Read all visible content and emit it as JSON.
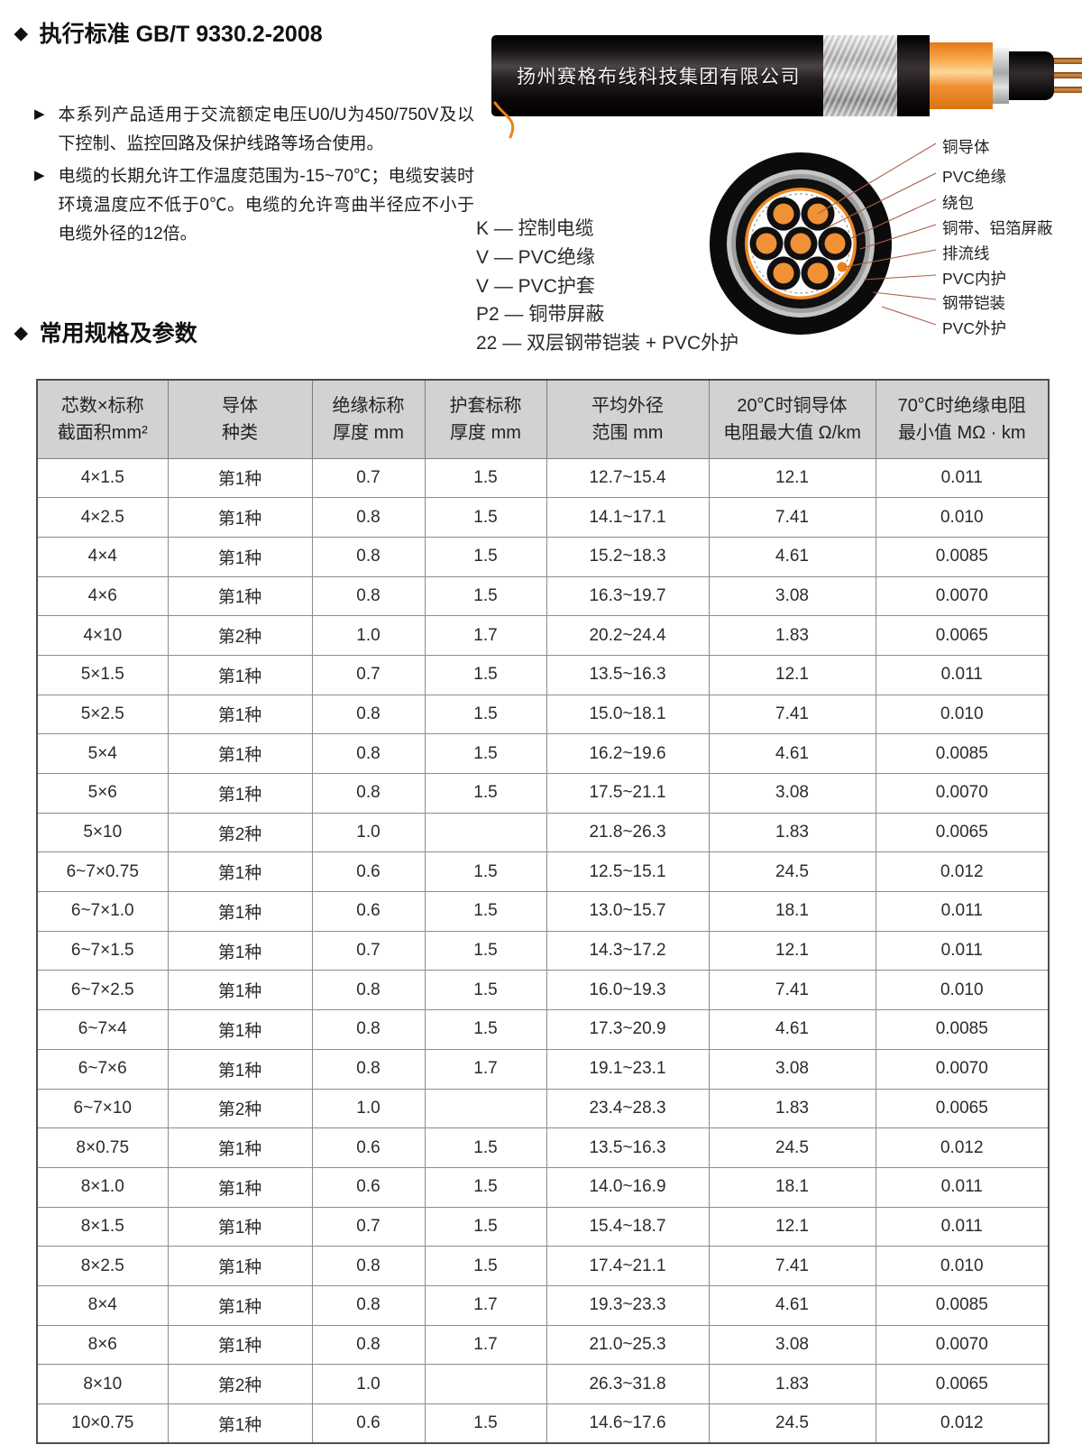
{
  "icons": {
    "diamond": "◆",
    "triangle": "▶"
  },
  "headings": {
    "standard": "执行标准 GB/T 9330.2-2008",
    "specs": "常用规格及参数"
  },
  "bullets": [
    "本系列产品适用于交流额定电压U0/U为450/750V及以下控制、监控回路及保护线路等场合使用。",
    "电缆的长期允许工作温度范围为-15~70℃；电缆安装时环境温度应不低于0℃。电缆的允许弯曲半径应不小于电缆外径的12倍。"
  ],
  "cable_photo": {
    "brand_text": "扬州赛格布线科技集团有限公司"
  },
  "code_legend": [
    "K — 控制电缆",
    "V — PVC绝缘",
    "V — PVC护套",
    "P2 — 铜带屏蔽",
    "22 — 双层钢带铠装 + PVC外护"
  ],
  "diagram_labels": [
    "铜导体",
    "PVC绝缘",
    "绕包",
    "铜带、铝箔屏蔽",
    "排流线",
    "PVC内护",
    "钢带铠装",
    "PVC外护"
  ],
  "colors": {
    "core_orange": "#f09136",
    "sheath_black": "#0b0b0b",
    "steel_gray": "#bdbdbd",
    "leader_line": "#a9604a",
    "table_header_bg": "#d2d2d2"
  },
  "table": {
    "headers": [
      [
        "芯数×标称",
        "截面积mm²"
      ],
      [
        "导体",
        "种类"
      ],
      [
        "绝缘标称",
        "厚度 mm"
      ],
      [
        "护套标称",
        "厚度 mm"
      ],
      [
        "平均外径",
        "范围 mm"
      ],
      [
        "20℃时铜导体",
        "电阻最大值 Ω/km"
      ],
      [
        "70℃时绝缘电阻",
        "最小值 MΩ · km"
      ]
    ],
    "rows": [
      [
        "4×1.5",
        "第1种",
        "0.7",
        "1.5",
        "12.7~15.4",
        "12.1",
        "0.011"
      ],
      [
        "4×2.5",
        "第1种",
        "0.8",
        "1.5",
        "14.1~17.1",
        "7.41",
        "0.010"
      ],
      [
        "4×4",
        "第1种",
        "0.8",
        "1.5",
        "15.2~18.3",
        "4.61",
        "0.0085"
      ],
      [
        "4×6",
        "第1种",
        "0.8",
        "1.5",
        "16.3~19.7",
        "3.08",
        "0.0070"
      ],
      [
        "4×10",
        "第2种",
        "1.0",
        "1.7",
        "20.2~24.4",
        "1.83",
        "0.0065"
      ],
      [
        "5×1.5",
        "第1种",
        "0.7",
        "1.5",
        "13.5~16.3",
        "12.1",
        "0.011"
      ],
      [
        "5×2.5",
        "第1种",
        "0.8",
        "1.5",
        "15.0~18.1",
        "7.41",
        "0.010"
      ],
      [
        "5×4",
        "第1种",
        "0.8",
        "1.5",
        "16.2~19.6",
        "4.61",
        "0.0085"
      ],
      [
        "5×6",
        "第1种",
        "0.8",
        "1.5",
        "17.5~21.1",
        "3.08",
        "0.0070"
      ],
      [
        "5×10",
        "第2种",
        "1.0",
        "",
        "21.8~26.3",
        "1.83",
        "0.0065"
      ],
      [
        "6~7×0.75",
        "第1种",
        "0.6",
        "1.5",
        "12.5~15.1",
        "24.5",
        "0.012"
      ],
      [
        "6~7×1.0",
        "第1种",
        "0.6",
        "1.5",
        "13.0~15.7",
        "18.1",
        "0.011"
      ],
      [
        "6~7×1.5",
        "第1种",
        "0.7",
        "1.5",
        "14.3~17.2",
        "12.1",
        "0.011"
      ],
      [
        "6~7×2.5",
        "第1种",
        "0.8",
        "1.5",
        "16.0~19.3",
        "7.41",
        "0.010"
      ],
      [
        "6~7×4",
        "第1种",
        "0.8",
        "1.5",
        "17.3~20.9",
        "4.61",
        "0.0085"
      ],
      [
        "6~7×6",
        "第1种",
        "0.8",
        "1.7",
        "19.1~23.1",
        "3.08",
        "0.0070"
      ],
      [
        "6~7×10",
        "第2种",
        "1.0",
        "",
        "23.4~28.3",
        "1.83",
        "0.0065"
      ],
      [
        "8×0.75",
        "第1种",
        "0.6",
        "1.5",
        "13.5~16.3",
        "24.5",
        "0.012"
      ],
      [
        "8×1.0",
        "第1种",
        "0.6",
        "1.5",
        "14.0~16.9",
        "18.1",
        "0.011"
      ],
      [
        "8×1.5",
        "第1种",
        "0.7",
        "1.5",
        "15.4~18.7",
        "12.1",
        "0.011"
      ],
      [
        "8×2.5",
        "第1种",
        "0.8",
        "1.5",
        "17.4~21.1",
        "7.41",
        "0.010"
      ],
      [
        "8×4",
        "第1种",
        "0.8",
        "1.7",
        "19.3~23.3",
        "4.61",
        "0.0085"
      ],
      [
        "8×6",
        "第1种",
        "0.8",
        "1.7",
        "21.0~25.3",
        "3.08",
        "0.0070"
      ],
      [
        "8×10",
        "第2种",
        "1.0",
        "",
        "26.3~31.8",
        "1.83",
        "0.0065"
      ],
      [
        "10×0.75",
        "第1种",
        "0.6",
        "1.5",
        "14.6~17.6",
        "24.5",
        "0.012"
      ]
    ]
  }
}
